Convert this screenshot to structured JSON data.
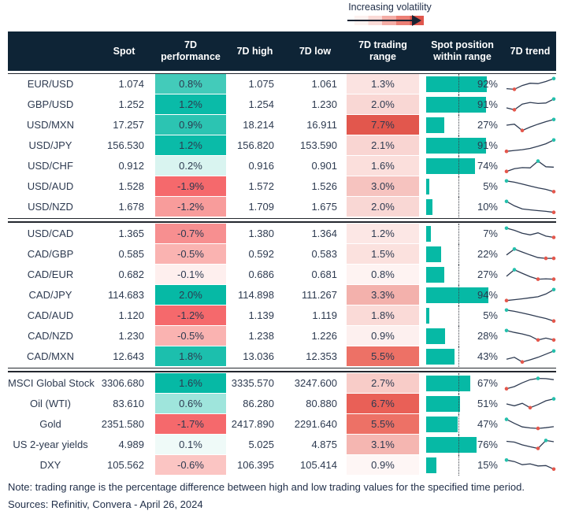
{
  "colors": {
    "header_bg": "#0E2436",
    "body_text": "#2D3A50",
    "teal": "#06B9A5",
    "negative_red": "#F5696C",
    "range_max_red": "#E2574D",
    "spark_line": "#2E3B52",
    "spark_max_dot": "#25C0AC",
    "spark_min_dot": "#E4574C",
    "separator_line": "#23272E"
  },
  "chart_data": {
    "type": "table",
    "legend_label": "Increasing volatility",
    "columns": {
      "instrument": "",
      "spot": "Spot",
      "performance": "7D\nperformance",
      "high": "7D high",
      "low": "7D low",
      "range": "7D trading\nrange",
      "position": "Spot position\nwithin range",
      "trend": "7D trend"
    },
    "blocks": [
      {
        "rows": [
          {
            "name": "EUR/USD",
            "spot": "1.074",
            "perf": "0.8%",
            "perf_color": "#43CBBA",
            "high": "1.075",
            "low": "1.061",
            "range": "1.3%",
            "range_color": "#FBE3E1",
            "position_pct": 92,
            "position_label": "92%",
            "trend": [
              15,
              10,
              40,
              58,
              55,
              72,
              95
            ]
          },
          {
            "name": "GBP/USD",
            "spot": "1.252",
            "perf": "1.2%",
            "perf_color": "#0ABBA8",
            "high": "1.254",
            "low": "1.230",
            "range": "2.0%",
            "range_color": "#F9D7D4",
            "position_pct": 91,
            "position_label": "91%",
            "trend": [
              25,
              10,
              55,
              68,
              60,
              64,
              95
            ]
          },
          {
            "name": "USD/MXN",
            "spot": "17.257",
            "perf": "0.9%",
            "perf_color": "#2CC4B2",
            "high": "18.214",
            "low": "16.911",
            "range": "7.7%",
            "range_color": "#E2574D",
            "position_pct": 27,
            "position_label": "27%",
            "trend": [
              50,
              58,
              8,
              35,
              58,
              78,
              95
            ]
          },
          {
            "name": "USD/JPY",
            "spot": "156.530",
            "perf": "1.2%",
            "perf_color": "#0ABBA8",
            "high": "156.820",
            "low": "153.590",
            "range": "2.1%",
            "range_color": "#F9D5D2",
            "position_pct": 91,
            "position_label": "91%",
            "trend": [
              5,
              12,
              18,
              28,
              45,
              65,
              95
            ]
          },
          {
            "name": "USD/CHF",
            "spot": "0.912",
            "perf": "0.2%",
            "perf_color": "#D9F4F0",
            "high": "0.916",
            "low": "0.901",
            "range": "1.6%",
            "range_color": "#FBDFDC",
            "position_pct": 74,
            "position_label": "74%",
            "trend": [
              8,
              30,
              38,
              36,
              90,
              45,
              42
            ]
          },
          {
            "name": "USD/AUD",
            "spot": "1.528",
            "perf": "-1.9%",
            "perf_color": "#F5696C",
            "high": "1.572",
            "low": "1.526",
            "range": "3.0%",
            "range_color": "#F6C3BF",
            "position_pct": 5,
            "position_label": "5%",
            "trend": [
              95,
              85,
              70,
              55,
              40,
              28,
              10
            ]
          },
          {
            "name": "USD/NZD",
            "spot": "1.678",
            "perf": "-1.2%",
            "perf_color": "#F89C9B",
            "high": "1.709",
            "low": "1.675",
            "range": "2.0%",
            "range_color": "#F9D7D4",
            "position_pct": 10,
            "position_label": "10%",
            "trend": [
              95,
              60,
              35,
              28,
              22,
              16,
              8
            ]
          }
        ]
      },
      {
        "rows": [
          {
            "name": "USD/CAD",
            "spot": "1.365",
            "perf": "-0.7%",
            "perf_color": "#F78F90",
            "high": "1.380",
            "low": "1.364",
            "range": "1.2%",
            "range_color": "#FCE7E5",
            "position_pct": 7,
            "position_label": "7%",
            "trend": [
              95,
              78,
              55,
              42,
              58,
              32,
              22
            ]
          },
          {
            "name": "CAD/GBP",
            "spot": "0.585",
            "perf": "-0.5%",
            "perf_color": "#FAB3B1",
            "high": "0.592",
            "low": "0.583",
            "range": "1.5%",
            "range_color": "#FBE1DE",
            "position_pct": 22,
            "position_label": "22%",
            "trend": [
              45,
              92,
              68,
              45,
              24,
              18,
              18
            ]
          },
          {
            "name": "CAD/EUR",
            "spot": "0.682",
            "perf": "-0.1%",
            "perf_color": "#FEEFEE",
            "high": "0.686",
            "low": "0.681",
            "range": "0.8%",
            "range_color": "#FEF3F2",
            "position_pct": 27,
            "position_label": "27%",
            "trend": [
              38,
              90,
              62,
              35,
              15,
              18,
              15
            ]
          },
          {
            "name": "CAD/JPY",
            "spot": "114.683",
            "perf": "2.0%",
            "perf_color": "#06B9A5",
            "high": "114.898",
            "low": "111.267",
            "range": "3.3%",
            "range_color": "#F3B1AC",
            "position_pct": 94,
            "position_label": "94%",
            "trend": [
              8,
              15,
              22,
              30,
              38,
              60,
              95
            ]
          },
          {
            "name": "CAD/AUD",
            "spot": "1.120",
            "perf": "-1.2%",
            "perf_color": "#F5696C",
            "high": "1.139",
            "low": "1.119",
            "range": "1.8%",
            "range_color": "#FADAD7",
            "position_pct": 5,
            "position_label": "5%",
            "trend": [
              95,
              85,
              72,
              58,
              42,
              28,
              8
            ]
          },
          {
            "name": "CAD/NZD",
            "spot": "1.230",
            "perf": "-0.5%",
            "perf_color": "#FAB3B1",
            "high": "1.238",
            "low": "1.226",
            "range": "0.9%",
            "range_color": "#FDF0EF",
            "position_pct": 28,
            "position_label": "28%",
            "trend": [
              95,
              80,
              68,
              52,
              20,
              35,
              20
            ]
          },
          {
            "name": "CAD/MXN",
            "spot": "12.643",
            "perf": "1.8%",
            "perf_color": "#1CBFAD",
            "high": "13.036",
            "low": "12.353",
            "range": "5.5%",
            "range_color": "#ED7166",
            "position_pct": 43,
            "position_label": "43%",
            "trend": [
              30,
              45,
              8,
              25,
              45,
              70,
              95
            ]
          }
        ]
      },
      {
        "rows": [
          {
            "name": "MSCI Global Stock",
            "spot": "3306.680",
            "perf": "1.6%",
            "perf_color": "#06B9A5",
            "high": "3335.570",
            "low": "3247.600",
            "range": "2.7%",
            "range_color": "#F8CCC8",
            "position_pct": 67,
            "position_label": "67%",
            "trend": [
              8,
              25,
              55,
              80,
              90,
              88,
              80
            ]
          },
          {
            "name": "Oil (WTI)",
            "spot": "83.610",
            "perf": "0.6%",
            "perf_color": "#9FE5DC",
            "high": "86.280",
            "low": "80.880",
            "range": "6.7%",
            "range_color": "#E96057",
            "position_pct": 51,
            "position_label": "51%",
            "trend": [
              50,
              35,
              55,
              20,
              45,
              75,
              90
            ]
          },
          {
            "name": "Gold",
            "spot": "2351.580",
            "perf": "-1.7%",
            "perf_color": "#F5696C",
            "high": "2417.890",
            "low": "2291.640",
            "range": "5.5%",
            "range_color": "#ED7166",
            "position_pct": 47,
            "position_label": "47%",
            "trend": [
              90,
              58,
              30,
              22,
              18,
              24,
              32
            ]
          },
          {
            "name": "US 2-year yields",
            "spot": "4.989",
            "perf": "0.1%",
            "perf_color": "#EFFAF8",
            "high": "5.025",
            "low": "4.875",
            "range": "3.1%",
            "range_color": "#F5B6B1",
            "position_pct": 76,
            "position_label": "76%",
            "trend": [
              78,
              72,
              50,
              35,
              22,
              85,
              75
            ]
          },
          {
            "name": "DXY",
            "spot": "105.562",
            "perf": "-0.6%",
            "perf_color": "#FBC5C3",
            "high": "106.395",
            "low": "105.414",
            "range": "0.9%",
            "range_color": "#FEF6F5",
            "position_pct": 15,
            "position_label": "15%",
            "trend": [
              92,
              80,
              55,
              62,
              45,
              48,
              20
            ]
          }
        ]
      }
    ],
    "note": "Note: trading range is the percentage difference between high and low trading values for the specified time period.",
    "sources": "Sources: Refinitiv, Convera - April 26, 2024"
  }
}
